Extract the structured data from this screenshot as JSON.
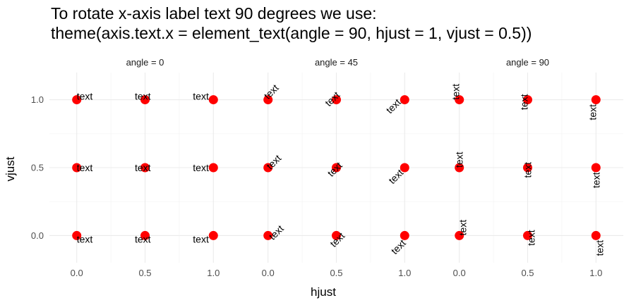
{
  "chart_data": {
    "type": "scatter",
    "title": "To rotate x-axis label text 90 degrees we use:",
    "subtitle": "theme(axis.text.x = element_text(angle = 90, hjust = 1, vjust = 0.5))",
    "xlabel": "hjust",
    "ylabel": "vjust",
    "xlim": [
      -0.2,
      1.2
    ],
    "ylim": [
      -0.2,
      1.2
    ],
    "x_ticks": [
      0.0,
      0.5,
      1.0
    ],
    "y_ticks": [
      0.0,
      0.5,
      1.0
    ],
    "x_tick_labels": [
      "0.0",
      "0.5",
      "1.0"
    ],
    "y_tick_labels": [
      "0.0",
      "0.5",
      "1.0"
    ],
    "grid": true,
    "point_color": "#ff0000",
    "point_label": "text",
    "facets": [
      {
        "strip": "angle = 0",
        "angle": 0
      },
      {
        "strip": "angle = 45",
        "angle": 45
      },
      {
        "strip": "angle = 90",
        "angle": 90
      }
    ],
    "points": [
      {
        "hjust": 0.0,
        "vjust": 0.0
      },
      {
        "hjust": 0.5,
        "vjust": 0.0
      },
      {
        "hjust": 1.0,
        "vjust": 0.0
      },
      {
        "hjust": 0.0,
        "vjust": 0.5
      },
      {
        "hjust": 0.5,
        "vjust": 0.5
      },
      {
        "hjust": 1.0,
        "vjust": 0.5
      },
      {
        "hjust": 0.0,
        "vjust": 1.0
      },
      {
        "hjust": 0.5,
        "vjust": 1.0
      },
      {
        "hjust": 1.0,
        "vjust": 1.0
      }
    ]
  }
}
